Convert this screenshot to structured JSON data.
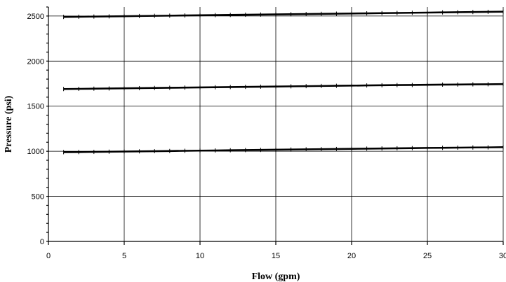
{
  "chart_data": {
    "type": "line",
    "xlabel": "Flow (gpm)",
    "ylabel": "Pressure (psi)",
    "xlim": [
      0,
      30
    ],
    "ylim": [
      0,
      2600
    ],
    "x_ticks": [
      "0",
      "5",
      "10",
      "15",
      "20",
      "25",
      "30"
    ],
    "y_ticks": [
      "0",
      "500",
      "1000",
      "1500",
      "2000",
      "2500"
    ],
    "grid": true,
    "legend": "none",
    "series": [
      {
        "x": [
          1,
          2,
          3,
          4,
          5,
          6,
          7,
          8,
          9,
          10,
          11,
          12,
          13,
          14,
          15,
          16,
          17,
          18,
          19,
          20,
          21,
          22,
          23,
          24,
          25,
          26,
          27,
          28,
          29,
          30
        ],
        "y": [
          990,
          991,
          993,
          995,
          997,
          999,
          1001,
          1003,
          1005,
          1007,
          1009,
          1011,
          1013,
          1015,
          1017,
          1019,
          1021,
          1023,
          1025,
          1027,
          1029,
          1031,
          1033,
          1035,
          1037,
          1038,
          1040,
          1042,
          1043,
          1045
        ]
      },
      {
        "x": [
          1,
          2,
          3,
          4,
          5,
          6,
          7,
          8,
          9,
          10,
          11,
          12,
          13,
          14,
          15,
          16,
          17,
          18,
          19,
          20,
          21,
          22,
          23,
          24,
          25,
          26,
          27,
          28,
          29,
          30
        ],
        "y": [
          1690,
          1692,
          1694,
          1696,
          1698,
          1700,
          1702,
          1704,
          1706,
          1708,
          1710,
          1712,
          1714,
          1716,
          1718,
          1720,
          1722,
          1724,
          1726,
          1728,
          1730,
          1732,
          1734,
          1735,
          1737,
          1739,
          1740,
          1742,
          1743,
          1745
        ]
      },
      {
        "x": [
          1,
          2,
          3,
          4,
          5,
          6,
          7,
          8,
          9,
          10,
          11,
          12,
          13,
          14,
          15,
          16,
          17,
          18,
          19,
          20,
          21,
          22,
          23,
          24,
          25,
          26,
          27,
          28,
          29,
          30
        ],
        "y": [
          2490,
          2492,
          2494,
          2496,
          2498,
          2500,
          2502,
          2504,
          2506,
          2508,
          2510,
          2512,
          2514,
          2516,
          2518,
          2520,
          2522,
          2524,
          2526,
          2528,
          2530,
          2532,
          2534,
          2536,
          2538,
          2540,
          2542,
          2544,
          2546,
          2548
        ]
      }
    ]
  }
}
